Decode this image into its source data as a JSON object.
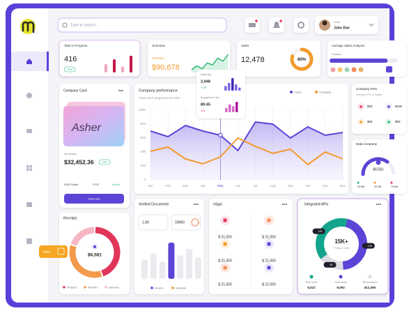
{
  "header": {
    "search_placeholder": "Type to search...",
    "greeting": "Hello",
    "user": "John Doe"
  },
  "task_card": {
    "title": "Task in Progress",
    "value": "416",
    "badge": "+4%",
    "bars": [
      14,
      22,
      10,
      28
    ]
  },
  "overview": {
    "title": "Overview",
    "label": "Revenue",
    "value": "$90,678",
    "sparkline": [
      10,
      14,
      11,
      17,
      15,
      22,
      19,
      26
    ]
  },
  "sales": {
    "title": "Sales",
    "value": "12,478",
    "ring": 80,
    "ring_label": "80%"
  },
  "avg_sales": {
    "title": "Average Sales Analysis",
    "label": "Progress",
    "progress": 85
  },
  "company_card": {
    "title": "Company Card",
    "signature": "Asher",
    "caption": "My Balance",
    "balance": "$32,452.36",
    "badge": "+3%",
    "currency": "USD Dollar",
    "number": "2702",
    "status": "Active",
    "button": "View card"
  },
  "performance": {
    "title": "Company performance",
    "subtitle": "Track your progress from first",
    "months": [
      "Jan",
      "Feb",
      "Mar",
      "Apr",
      "May",
      "Jun",
      "Jul",
      "Aug",
      "Sep",
      "Oct",
      "Nov",
      "Dec"
    ],
    "ylim": [
      0,
      1000
    ],
    "yticks": [
      0,
      200,
      400,
      600,
      800,
      1000
    ],
    "series": [
      {
        "name": "Cloud",
        "color": "#5b45d6",
        "values": [
          700,
          620,
          780,
          700,
          640,
          420,
          830,
          800,
          600,
          760,
          640,
          680
        ]
      },
      {
        "name": "Company",
        "color": "#f39a2b",
        "values": [
          410,
          470,
          300,
          230,
          330,
          600,
          480,
          380,
          440,
          220,
          400,
          300
        ]
      }
    ]
  },
  "popup": {
    "label1": "Marketing",
    "value1": "2,048",
    "badge1": "+12%",
    "bars1": [
      6,
      10,
      16,
      8,
      4
    ],
    "label2": "Engagement rate",
    "value2": "89.45",
    "badge2": "-6%",
    "bars2": [
      5,
      9,
      7,
      12
    ]
  },
  "kpis": {
    "title": "Company KPIs",
    "subtitle": "Company KPIs on Targets",
    "items": [
      "$30",
      "$100",
      "$68",
      "$53"
    ]
  },
  "data_company": {
    "title": "Data Company",
    "value": "$6,581",
    "gauge": 70,
    "stats": [
      "29.8K",
      "42.5K",
      "79.6K"
    ]
  },
  "receipts": {
    "title": "Receipts",
    "center": "$6,581",
    "segments": [
      {
        "name": "Invoices",
        "color": "#e0365a",
        "value": 45
      },
      {
        "name": "Transfer",
        "color": "#f39a4b",
        "value": 35
      },
      {
        "name": "Expense",
        "color": "#f6b6c4",
        "value": 20
      }
    ]
  },
  "verified": {
    "title": "Verified Documents",
    "stat1": "1.80",
    "stat2": "19960",
    "bars": [
      45,
      60,
      40,
      85,
      55,
      70,
      50
    ],
    "highlight": 3,
    "legend": [
      "Income",
      "Expense"
    ]
  },
  "esign": {
    "title": "eSign",
    "items": [
      "$ 21,550",
      "$ 21,550",
      "$ 21,550",
      "$ 21,550",
      "$ 21,550",
      "$ 21,550"
    ]
  },
  "apis": {
    "title": "Integrated APIs",
    "center": "15K+",
    "center_sub": "Product Sale",
    "segments": [
      {
        "label": "12K",
        "value": 12,
        "color": "#12a48c"
      },
      {
        "label": "14K",
        "value": 14,
        "color": "#5b45d6"
      },
      {
        "label": "5K",
        "value": 5,
        "color": "#dcdce2"
      }
    ],
    "stats": [
      {
        "label": "Total order",
        "value": "6,512"
      },
      {
        "label": "Total sales",
        "value": "8,093"
      },
      {
        "label": "Receivables",
        "value": "$12,366"
      }
    ]
  },
  "tag": {
    "label": "Sales"
  }
}
